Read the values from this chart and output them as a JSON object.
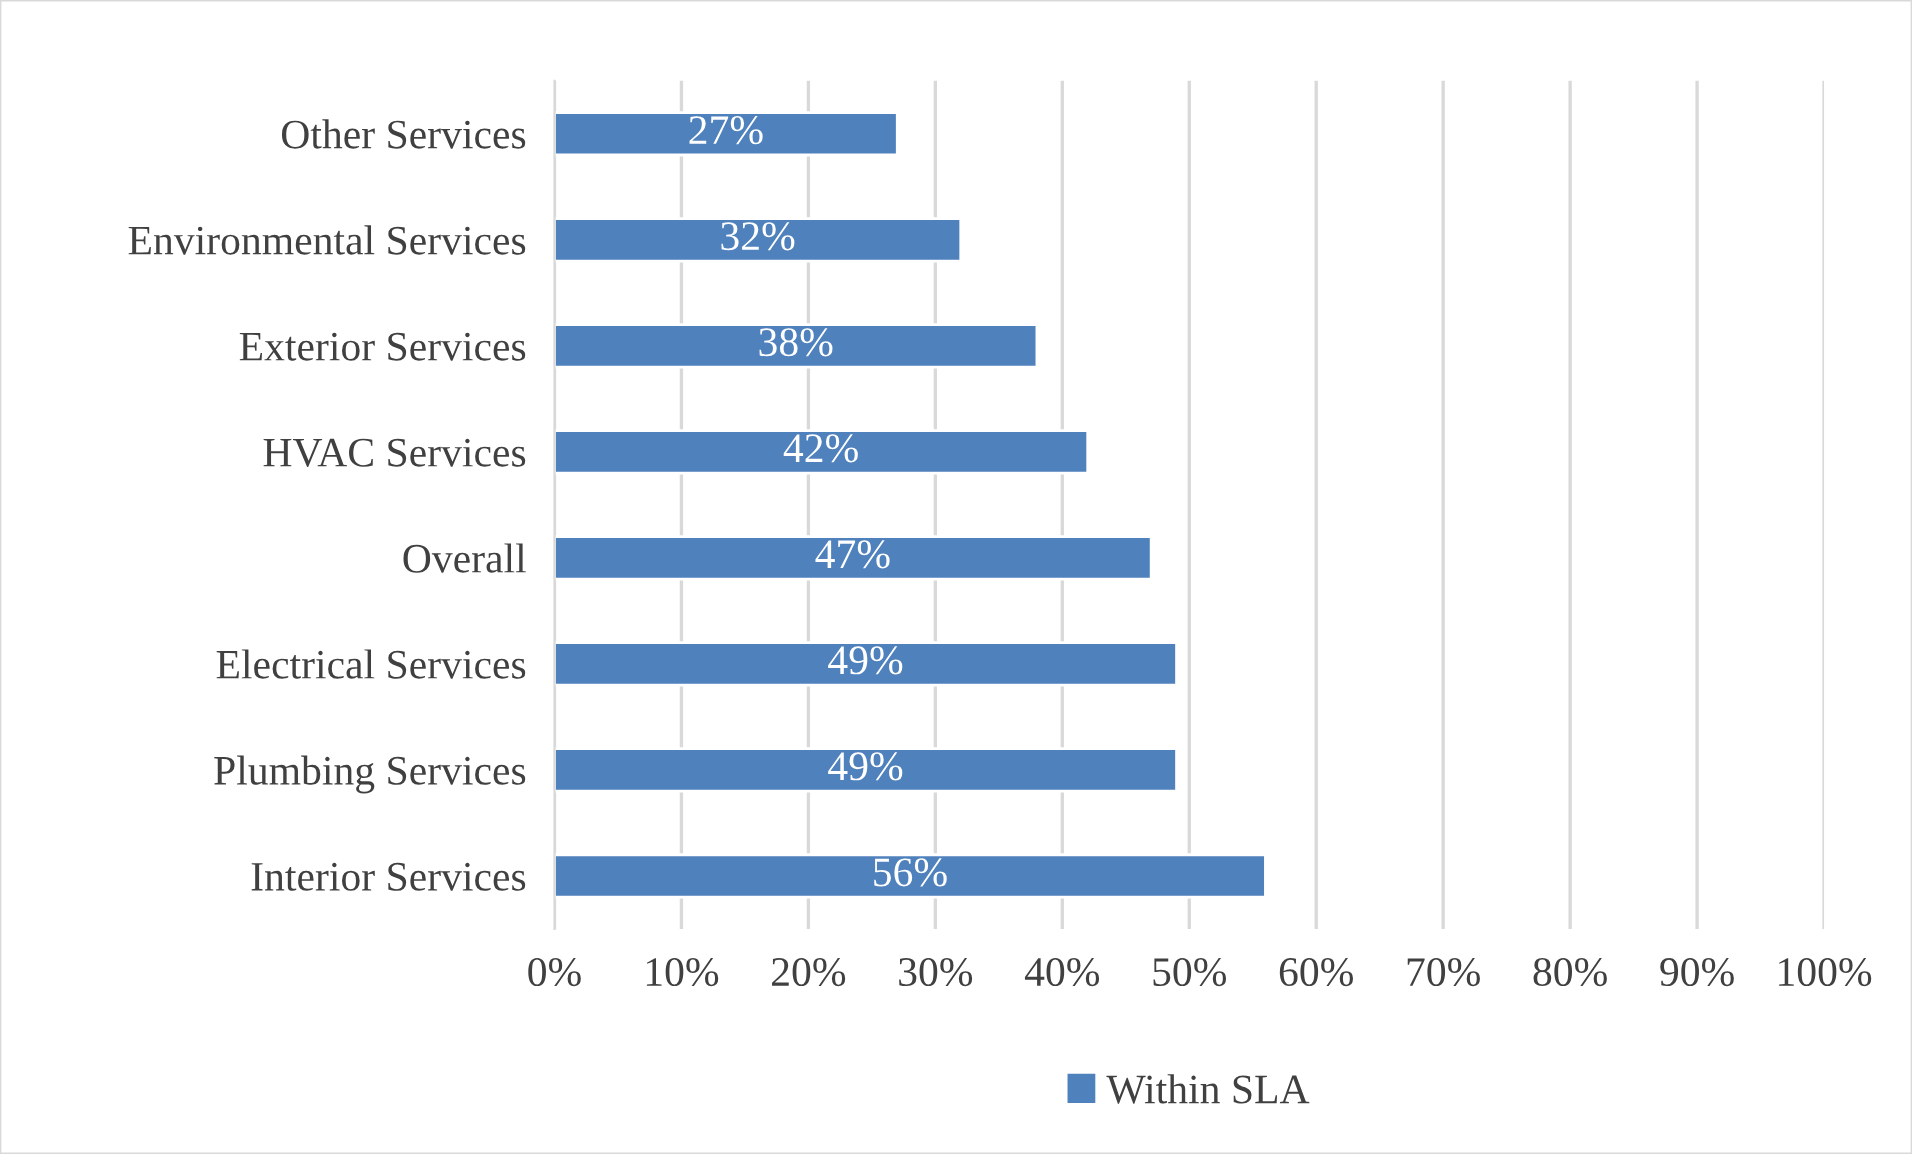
{
  "chart_data": {
    "type": "bar",
    "orientation": "horizontal",
    "categories": [
      "Other Services",
      "Environmental Services",
      "Exterior Services",
      "HVAC Services",
      "Overall",
      "Electrical Services",
      "Plumbing Services",
      "Interior Services"
    ],
    "series": [
      {
        "name": "Within SLA",
        "color": "#4f81bd",
        "values": [
          27,
          32,
          38,
          42,
          47,
          49,
          49,
          56
        ],
        "value_labels": [
          "27%",
          "32%",
          "38%",
          "42%",
          "47%",
          "49%",
          "49%",
          "56%"
        ]
      }
    ],
    "xlim": [
      0,
      100
    ],
    "xticks": [
      {
        "value": 0,
        "label": "0%"
      },
      {
        "value": 10,
        "label": "10%"
      },
      {
        "value": 20,
        "label": "20%"
      },
      {
        "value": 30,
        "label": "30%"
      },
      {
        "value": 40,
        "label": "40%"
      },
      {
        "value": 50,
        "label": "50%"
      },
      {
        "value": 60,
        "label": "60%"
      },
      {
        "value": 70,
        "label": "70%"
      },
      {
        "value": 80,
        "label": "80%"
      },
      {
        "value": 90,
        "label": "90%"
      },
      {
        "value": 100,
        "label": "100%"
      }
    ],
    "grid": "x",
    "legend": "bottom"
  }
}
